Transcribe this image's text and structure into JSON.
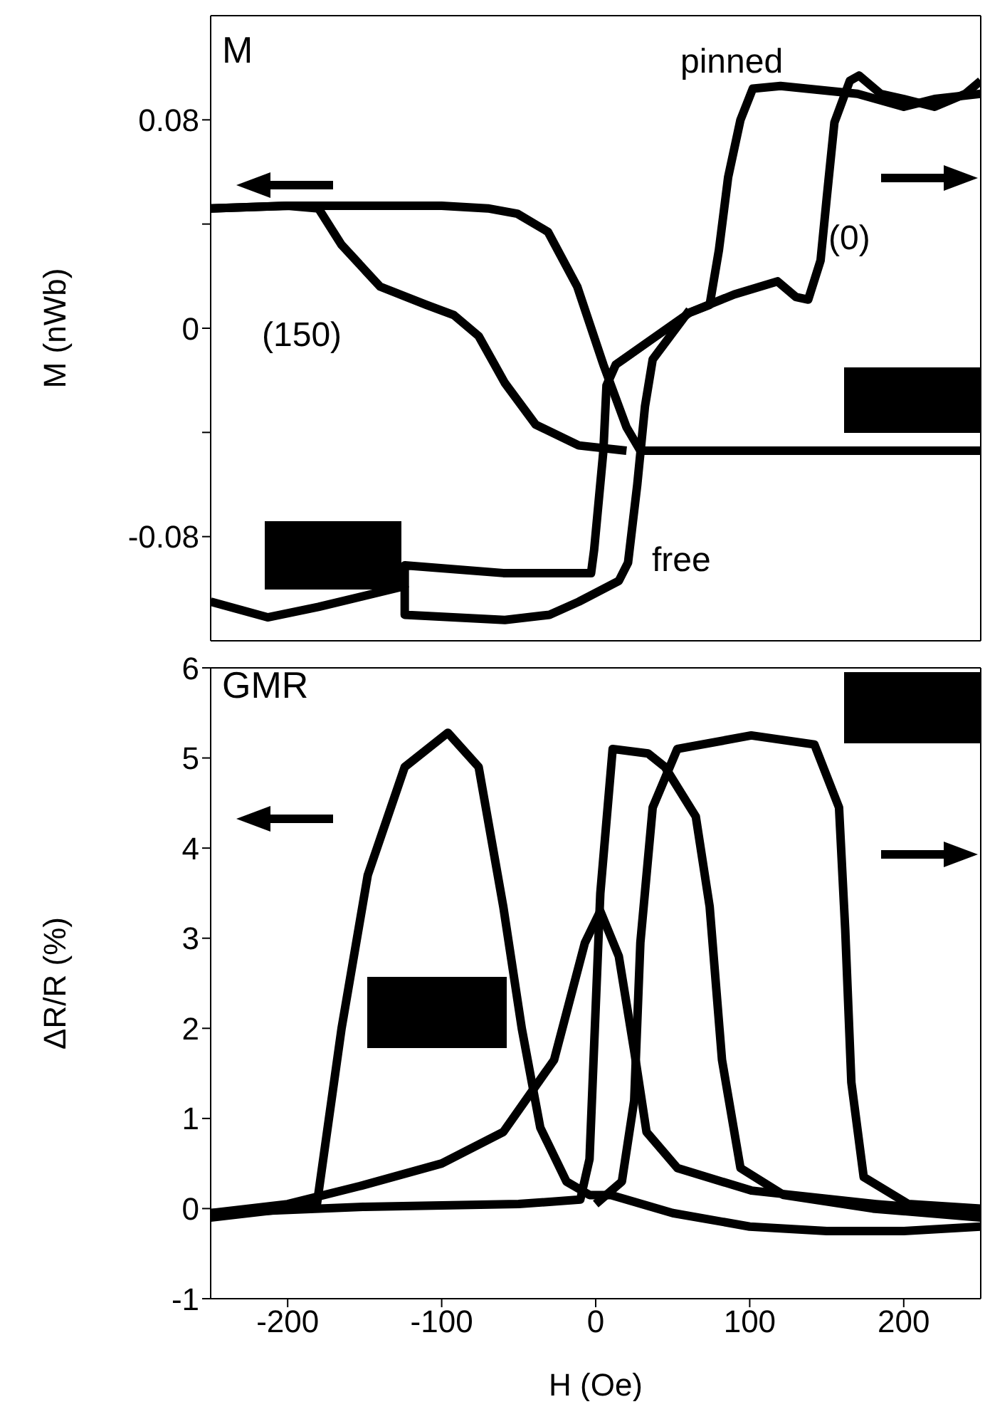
{
  "chart_data": [
    {
      "type": "line",
      "title": "M",
      "ylabel": "M (nWb)",
      "xlim": [
        -250,
        250
      ],
      "xticks": [
        -200,
        -100,
        0,
        100,
        200
      ],
      "ylim": [
        -0.12,
        0.12
      ],
      "yticks": [
        -0.08,
        {
          "value": -0.04,
          "label": null
        },
        0,
        {
          "value": 0.04,
          "label": null
        },
        0.08
      ],
      "tick_labels": "y",
      "annotations": [
        "pinned",
        "free",
        "(150)",
        "(0)"
      ],
      "series": [
        {
          "color": "#000000",
          "x": [
            -250,
            -200,
            -150,
            -100,
            -70,
            -51,
            -31,
            -12,
            5,
            20,
            29,
            50,
            100,
            150,
            200,
            250
          ],
          "values": [
            0.046,
            0.047,
            0.047,
            0.047,
            0.046,
            0.044,
            0.037,
            0.016,
            -0.014,
            -0.038,
            -0.047,
            -0.047,
            -0.047,
            -0.047,
            -0.047,
            -0.047
          ]
        },
        {
          "color": "#000000",
          "x": [
            -250,
            -200,
            -180,
            -165,
            -140,
            -110,
            -92,
            -76,
            -59,
            -39,
            -11,
            20
          ],
          "values": [
            0.046,
            0.047,
            0.046,
            0.032,
            0.016,
            0.009,
            0.005,
            -0.003,
            -0.021,
            -0.037,
            -0.045,
            -0.047
          ]
        },
        {
          "color": "#000000",
          "x": [
            -250,
            -213,
            -180,
            -124,
            -124,
            -60,
            -3,
            -1,
            5,
            7,
            13,
            37,
            61,
            90,
            118,
            130,
            138,
            146,
            150,
            155,
            165,
            171,
            185,
            200,
            220,
            240,
            250
          ],
          "values": [
            -0.105,
            -0.111,
            -0.107,
            -0.099,
            -0.091,
            -0.094,
            -0.094,
            -0.085,
            -0.047,
            -0.022,
            -0.014,
            -0.004,
            0.006,
            0.013,
            0.018,
            0.012,
            0.011,
            0.026,
            0.05,
            0.079,
            0.095,
            0.097,
            0.09,
            0.088,
            0.085,
            0.09,
            0.095
          ]
        },
        {
          "color": "#000000",
          "x": [
            -124,
            -124,
            -59,
            -30,
            -11,
            15,
            21,
            27,
            32,
            37,
            61
          ],
          "values": [
            -0.099,
            -0.11,
            -0.112,
            -0.11,
            -0.105,
            -0.097,
            -0.09,
            -0.06,
            -0.03,
            -0.012,
            0.007
          ]
        },
        {
          "color": "#000000",
          "x": [
            250,
            220,
            200,
            170,
            120,
            102,
            94,
            86,
            80,
            74,
            61
          ],
          "values": [
            0.09,
            0.088,
            0.085,
            0.09,
            0.093,
            0.092,
            0.08,
            0.058,
            0.03,
            0.009,
            0.006
          ]
        }
      ]
    },
    {
      "type": "line",
      "title": "GMR",
      "xlabel": "H (Oe)",
      "ylabel": "ΔR/R (%)",
      "xlim": [
        -250,
        250
      ],
      "xticks": [
        -200,
        -100,
        0,
        100,
        200
      ],
      "ylim": [
        -1,
        6
      ],
      "yticks": [
        -1,
        0,
        1,
        2,
        3,
        4,
        5,
        6
      ],
      "series": [
        {
          "color": "#000000",
          "x": [
            -250,
            -200,
            -181,
            -165,
            -148,
            -124,
            -96,
            -76,
            -60,
            -48,
            -36,
            -19,
            -4,
            10,
            50,
            100,
            150,
            200,
            250
          ],
          "values": [
            -0.1,
            0,
            0.05,
            2.0,
            3.7,
            4.9,
            5.28,
            4.9,
            3.35,
            2.0,
            0.9,
            0.3,
            0.15,
            0.15,
            -0.05,
            -0.2,
            -0.25,
            -0.25,
            -0.2
          ]
        },
        {
          "color": "#000000",
          "x": [
            -250,
            -200,
            -153,
            -100,
            -60,
            -27,
            -7,
            3,
            15,
            25,
            33,
            53,
            101,
            182,
            250
          ],
          "values": [
            -0.05,
            0.05,
            0.25,
            0.5,
            0.85,
            1.65,
            2.95,
            3.3,
            2.8,
            1.75,
            0.85,
            0.45,
            0.2,
            0.05,
            -0.05
          ]
        },
        {
          "color": "#000000",
          "x": [
            -250,
            -150,
            -50,
            -10,
            -4,
            3,
            11,
            34,
            45,
            65,
            74,
            82,
            94,
            122,
            180,
            250
          ],
          "values": [
            -0.05,
            0.02,
            0.05,
            0.1,
            0.55,
            3.5,
            5.1,
            5.05,
            4.9,
            4.35,
            3.35,
            1.65,
            0.45,
            0.15,
            0,
            -0.1
          ]
        },
        {
          "color": "#000000",
          "x": [
            0,
            17,
            25,
            29,
            37,
            53,
            101,
            142,
            158,
            162,
            166,
            174,
            203,
            250
          ],
          "values": [
            0.05,
            0.3,
            1.2,
            2.95,
            4.45,
            5.1,
            5.25,
            5.15,
            4.45,
            3.1,
            1.4,
            0.35,
            0.05,
            0
          ]
        }
      ]
    }
  ]
}
